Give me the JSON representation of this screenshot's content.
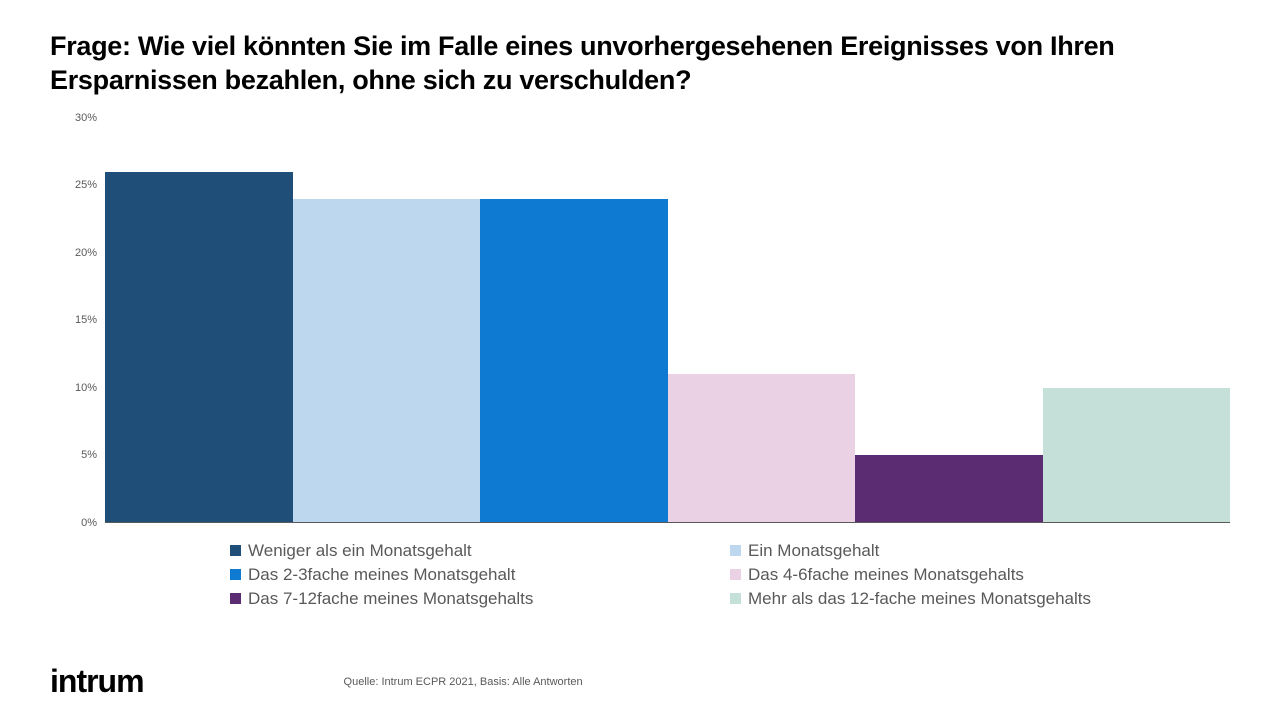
{
  "title": "Frage: Wie viel könnten Sie im Falle eines unvorhergesehenen Ereignisses von Ihren Ersparnissen bezahlen, ohne sich zu verschulden?",
  "chart": {
    "type": "bar",
    "ylim": [
      0,
      30
    ],
    "ytick_step": 5,
    "yticks": [
      "0%",
      "5%",
      "10%",
      "15%",
      "20%",
      "25%",
      "30%"
    ],
    "tick_fontsize": 11,
    "tick_color": "#595959",
    "background_color": "#ffffff",
    "baseline_color": "#595959",
    "bar_width": 1.0,
    "series": [
      {
        "label": "Weniger als ein Monatsgehalt",
        "value": 26,
        "color": "#1f4e79"
      },
      {
        "label": "Ein Monatsgehalt",
        "value": 24,
        "color": "#bdd7ee"
      },
      {
        "label": "Das 2-3fache meines Monatsgehalt",
        "value": 24,
        "color": "#0f7ad1"
      },
      {
        "label": "Das 4-6fache meines Monatsgehalts",
        "value": 11,
        "color": "#ead1e4"
      },
      {
        "label": "Das 7-12fache meines Monatsgehalts",
        "value": 5,
        "color": "#5b2c71"
      },
      {
        "label": "Mehr als das 12-fache meines Monatsgehalts",
        "value": 10,
        "color": "#c5e0d8"
      }
    ],
    "legend_fontsize": 17,
    "legend_text_color": "#595959"
  },
  "logo_text": "intrum",
  "source_text": "Quelle: Intrum ECPR 2021,  Basis: Alle Antworten"
}
